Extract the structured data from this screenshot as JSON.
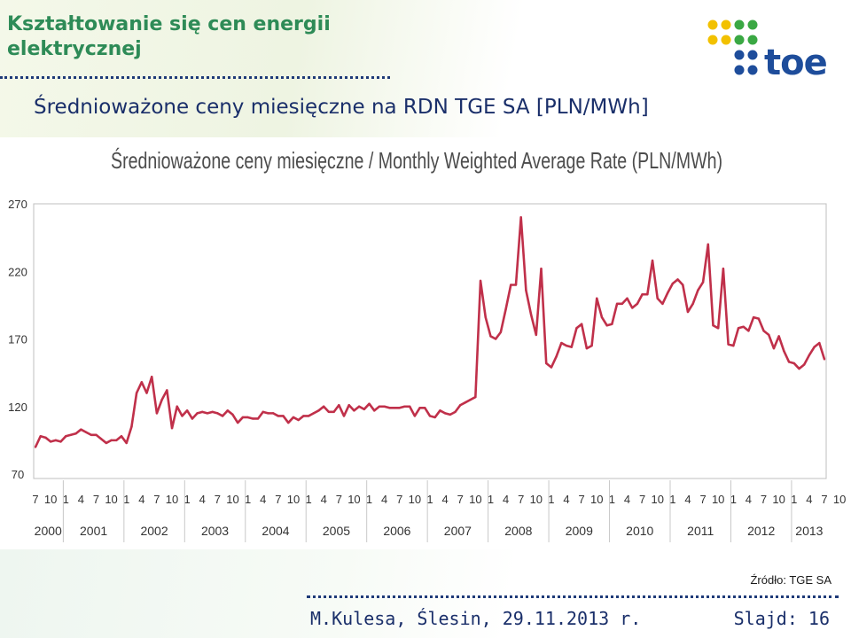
{
  "header": {
    "title": "Kształtowanie się cen energii elektrycznej",
    "subtitle": "Średnioważone ceny miesięczne na RDN TGE SA [PLN/MWh]"
  },
  "logo": {
    "text": "toe",
    "dot_colors": [
      "#f2c100",
      "#3aa843",
      "#1e4d9b"
    ]
  },
  "chart_data": {
    "type": "line",
    "title": "Średnioważone ceny miesięczne / Monthly Weighted Average Rate (PLN/MWh)",
    "xlabel": "",
    "ylabel": "",
    "ylim": [
      70,
      270
    ],
    "yticks": [
      70,
      120,
      170,
      220,
      270
    ],
    "grid": false,
    "line_color": "#c0304a",
    "x_month_ticks": [
      "7",
      "10",
      "1",
      "4",
      "7",
      "10",
      "1",
      "4",
      "7",
      "10",
      "1",
      "4",
      "7",
      "10",
      "1",
      "4",
      "7",
      "10",
      "1",
      "4",
      "7",
      "10",
      "1",
      "4",
      "7",
      "10",
      "1",
      "4",
      "7",
      "10",
      "1",
      "4",
      "7",
      "10",
      "1",
      "4",
      "7",
      "10",
      "1",
      "4",
      "7",
      "10",
      "1",
      "4",
      "7",
      "10",
      "1",
      "4",
      "7",
      "10",
      "1",
      "4",
      "7",
      "10",
      "1",
      "4",
      "7",
      "10"
    ],
    "years": [
      "2000",
      "2001",
      "2002",
      "2003",
      "2004",
      "2005",
      "2006",
      "2007",
      "2008",
      "2009",
      "2010",
      "2011",
      "2012",
      "2013"
    ],
    "series": [
      {
        "start": "2000-07",
        "values": [
          90,
          98,
          97,
          94,
          95,
          94,
          98,
          99,
          100,
          103,
          101,
          99,
          99,
          96,
          93,
          95,
          95,
          98,
          93,
          105,
          130,
          138,
          130,
          142,
          115,
          125,
          132,
          104,
          120,
          113,
          117,
          111,
          115,
          116,
          115,
          116,
          115,
          113,
          117,
          114,
          108,
          112,
          112,
          111,
          111,
          116,
          115,
          115,
          113,
          113,
          108,
          112,
          110,
          113,
          113,
          115,
          117,
          120,
          116,
          116,
          121,
          113,
          121,
          117,
          120,
          118,
          122,
          117,
          120,
          120,
          119,
          119,
          119,
          120,
          120,
          113,
          119,
          119,
          113,
          112,
          117,
          115,
          114,
          116,
          121,
          123,
          125,
          127,
          213,
          186,
          172,
          170,
          175,
          192,
          210,
          210,
          260,
          206,
          188,
          173,
          222,
          152,
          149,
          157,
          167,
          165,
          164,
          178,
          181,
          163,
          165,
          200,
          186,
          180,
          181,
          196,
          196,
          200,
          193,
          196,
          203,
          203,
          228,
          200,
          196,
          204,
          211,
          214,
          210,
          190,
          196,
          206,
          212,
          240,
          180,
          178,
          222,
          166,
          165,
          178,
          179,
          176,
          186,
          185,
          176,
          173,
          163,
          172,
          161,
          153,
          152,
          148,
          151,
          158,
          164,
          167,
          155
        ]
      }
    ]
  },
  "footer": {
    "source": "Źródło: TGE SA",
    "author": "M.Kulesa, Ślesin, 29.11.2013 r.",
    "slide": "Slajd: 16"
  }
}
